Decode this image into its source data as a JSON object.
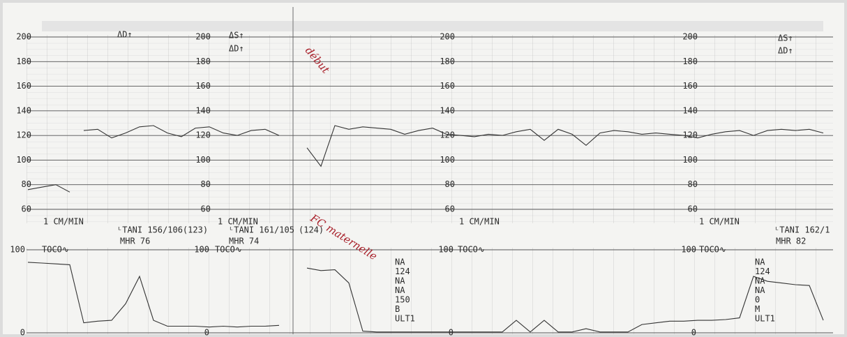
{
  "chart_data": [
    {
      "type": "line",
      "ylim": [
        60,
        200
      ],
      "yticks": [
        60,
        80,
        100,
        120,
        140,
        160,
        180,
        200
      ],
      "grid": true,
      "series": [
        {
          "color": "#333333",
          "values": [
            null,
            null,
            null,
            null,
            124,
            125,
            118,
            122,
            127,
            128,
            122,
            119,
            126,
            127,
            122,
            120,
            124,
            125,
            120,
            null,
            110,
            95,
            128,
            125,
            127,
            126,
            125,
            121,
            124,
            126,
            121,
            120,
            119,
            121,
            120,
            123,
            125,
            116,
            125,
            121,
            112,
            122,
            124,
            123,
            121,
            122,
            121,
            120,
            118,
            121,
            123,
            124,
            120,
            124,
            125,
            124,
            125,
            122
          ]
        },
        {
          "color": "#333333",
          "values": [
            76,
            78,
            80,
            74,
            null,
            null,
            null,
            null,
            null,
            null,
            null,
            null,
            null,
            null,
            null,
            null,
            null,
            null,
            null,
            null,
            null,
            null,
            null,
            null,
            null,
            null,
            null,
            null,
            null,
            null,
            null,
            null,
            null,
            null,
            null,
            null,
            null,
            null,
            null,
            null,
            null,
            null,
            null,
            null,
            null,
            null,
            null,
            null,
            null,
            null,
            null,
            null,
            null,
            null,
            null,
            null,
            null,
            null
          ]
        }
      ],
      "annotations": [
        "ΔD↑",
        "ΔS↑",
        "1 CM/MIN",
        "ᴸTANI 156/106(123)",
        "MHR 76",
        "ᴸTANI 161/105",
        "(124)",
        "MHR 74",
        "ᴸTANI 162/1",
        "MHR 82"
      ],
      "handwritten": [
        "début",
        "FC maternelle"
      ]
    },
    {
      "type": "line",
      "ylabel": "TOCO∿",
      "ylim": [
        0,
        100
      ],
      "yticks": [
        0,
        100
      ],
      "grid": true,
      "series": [
        {
          "color": "#333333",
          "values": [
            85,
            84,
            83,
            82,
            12,
            14,
            15,
            35,
            68,
            15,
            8,
            8,
            8,
            7,
            8,
            7,
            8,
            8,
            9,
            null,
            78,
            75,
            76,
            60,
            2,
            1,
            1,
            1,
            1,
            1,
            1,
            1,
            1,
            1,
            1,
            15,
            1,
            15,
            1,
            1,
            5,
            1,
            1,
            1,
            10,
            12,
            14,
            14,
            15,
            15,
            16,
            18,
            68,
            62,
            60,
            58,
            57,
            15
          ]
        }
      ],
      "status_columns": [
        [
          "NA",
          "124",
          "NA",
          "NA",
          "150",
          "B",
          "ULT1"
        ],
        [
          "NA",
          "124",
          "NA",
          "NA",
          "0",
          "M",
          "ULT1"
        ]
      ]
    }
  ]
}
